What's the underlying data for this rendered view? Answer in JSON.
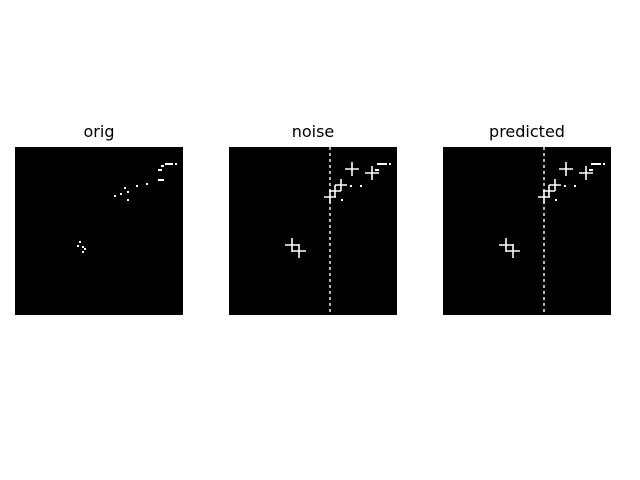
{
  "figure": {
    "panels": [
      {
        "title": "orig",
        "image": "sparse-white-dots-on-black"
      },
      {
        "title": "noise",
        "image": "white-crosses-and-dashed-vertical-line-on-black"
      },
      {
        "title": "predicted",
        "image": "white-crosses-and-dashed-vertical-line-on-black"
      }
    ],
    "colors": {
      "background": "#ffffff",
      "image_background": "#000000",
      "foreground": "#ffffff",
      "text": "#000000"
    }
  }
}
